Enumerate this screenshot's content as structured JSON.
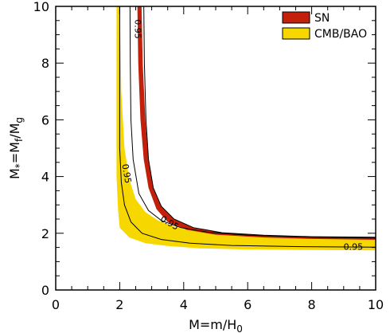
{
  "chart_data": {
    "type": "area",
    "xlabel_parts": {
      "main": "M=m/H",
      "sub": "0"
    },
    "ylabel_parts": {
      "pre": "M",
      "sub1": "*",
      "mid": "=M",
      "sub2": "f",
      "mid2": "/M",
      "sub3": "g"
    },
    "xlim": [
      0,
      10
    ],
    "ylim": [
      0,
      10
    ],
    "xticks": [
      0,
      2,
      4,
      6,
      8,
      10
    ],
    "yticks": [
      0,
      2,
      4,
      6,
      8,
      10
    ],
    "grid": false,
    "legend_position": "top-right",
    "legend": [
      {
        "name": "SN",
        "color": "#c2200a"
      },
      {
        "name": "CMB/BAO",
        "color": "#f7d700"
      }
    ],
    "regions": [
      {
        "name": "CMB/BAO",
        "color": "#f7d700",
        "upper": [
          [
            2.0,
            10.2
          ],
          [
            2.05,
            7.0
          ],
          [
            2.15,
            5.0
          ],
          [
            2.3,
            3.9
          ],
          [
            2.5,
            3.2
          ],
          [
            2.8,
            2.75
          ],
          [
            3.2,
            2.45
          ],
          [
            3.8,
            2.2
          ],
          [
            4.6,
            2.05
          ],
          [
            5.8,
            1.95
          ],
          [
            7.5,
            1.88
          ],
          [
            10,
            1.83
          ]
        ],
        "lower": [
          [
            1.9,
            10.2
          ],
          [
            1.9,
            4.0
          ],
          [
            1.95,
            2.8
          ],
          [
            2.0,
            2.2
          ],
          [
            2.3,
            1.85
          ],
          [
            2.8,
            1.65
          ],
          [
            3.5,
            1.55
          ],
          [
            4.5,
            1.47
          ],
          [
            6.0,
            1.43
          ],
          [
            8.0,
            1.41
          ],
          [
            10,
            1.4
          ]
        ]
      },
      {
        "name": "SN",
        "color": "#c2200a",
        "upper": [
          [
            2.68,
            10.2
          ],
          [
            2.72,
            8.0
          ],
          [
            2.8,
            6.0
          ],
          [
            2.9,
            4.6
          ],
          [
            3.05,
            3.6
          ],
          [
            3.3,
            2.95
          ],
          [
            3.7,
            2.5
          ],
          [
            4.3,
            2.2
          ],
          [
            5.2,
            2.02
          ],
          [
            6.5,
            1.93
          ],
          [
            8.0,
            1.88
          ],
          [
            10,
            1.86
          ]
        ],
        "lower": [
          [
            2.55,
            10.2
          ],
          [
            2.58,
            8.0
          ],
          [
            2.65,
            6.0
          ],
          [
            2.75,
            4.6
          ],
          [
            2.9,
            3.6
          ],
          [
            3.15,
            2.85
          ],
          [
            3.5,
            2.4
          ],
          [
            4.1,
            2.12
          ],
          [
            5.0,
            1.95
          ],
          [
            6.5,
            1.85
          ],
          [
            8.0,
            1.8
          ],
          [
            10,
            1.77
          ]
        ]
      }
    ],
    "contours": [
      {
        "level": "0.95",
        "points": [
          [
            2.32,
            10.2
          ],
          [
            2.33,
            8.0
          ],
          [
            2.35,
            6.0
          ],
          [
            2.42,
            4.6
          ],
          [
            2.6,
            3.4
          ],
          [
            2.9,
            2.8
          ],
          [
            3.3,
            2.45
          ],
          [
            3.9,
            2.2
          ],
          [
            4.8,
            2.03
          ],
          [
            6.0,
            1.93
          ],
          [
            8.0,
            1.86
          ],
          [
            10,
            1.83
          ]
        ]
      },
      {
        "level": "0.95",
        "points": [
          [
            2.75,
            10.2
          ],
          [
            2.77,
            8.0
          ],
          [
            2.82,
            6.0
          ],
          [
            2.9,
            4.6
          ],
          [
            3.05,
            3.6
          ],
          [
            3.3,
            2.95
          ],
          [
            3.7,
            2.5
          ],
          [
            4.3,
            2.2
          ],
          [
            5.2,
            2.02
          ],
          [
            6.5,
            1.93
          ],
          [
            8.0,
            1.88
          ],
          [
            10,
            1.86
          ]
        ]
      },
      {
        "level": "0.95",
        "points": [
          [
            2.0,
            10.2
          ],
          [
            2.0,
            5.0
          ],
          [
            2.05,
            3.8
          ],
          [
            2.15,
            3.0
          ],
          [
            2.35,
            2.4
          ],
          [
            2.7,
            2.0
          ],
          [
            3.3,
            1.78
          ],
          [
            4.2,
            1.65
          ],
          [
            5.5,
            1.57
          ],
          [
            7.5,
            1.53
          ],
          [
            10,
            1.51
          ]
        ]
      }
    ],
    "contour_labels": [
      {
        "text": "0.95",
        "x": 2.55,
        "y": 9.2,
        "rotate": 90
      },
      {
        "text": "0.95",
        "x": 2.2,
        "y": 4.1,
        "rotate": 80
      },
      {
        "text": "0.95",
        "x": 3.55,
        "y": 2.35,
        "rotate": 30
      },
      {
        "text": "0.95",
        "x": 9.3,
        "y": 1.5,
        "rotate": 0
      }
    ]
  }
}
